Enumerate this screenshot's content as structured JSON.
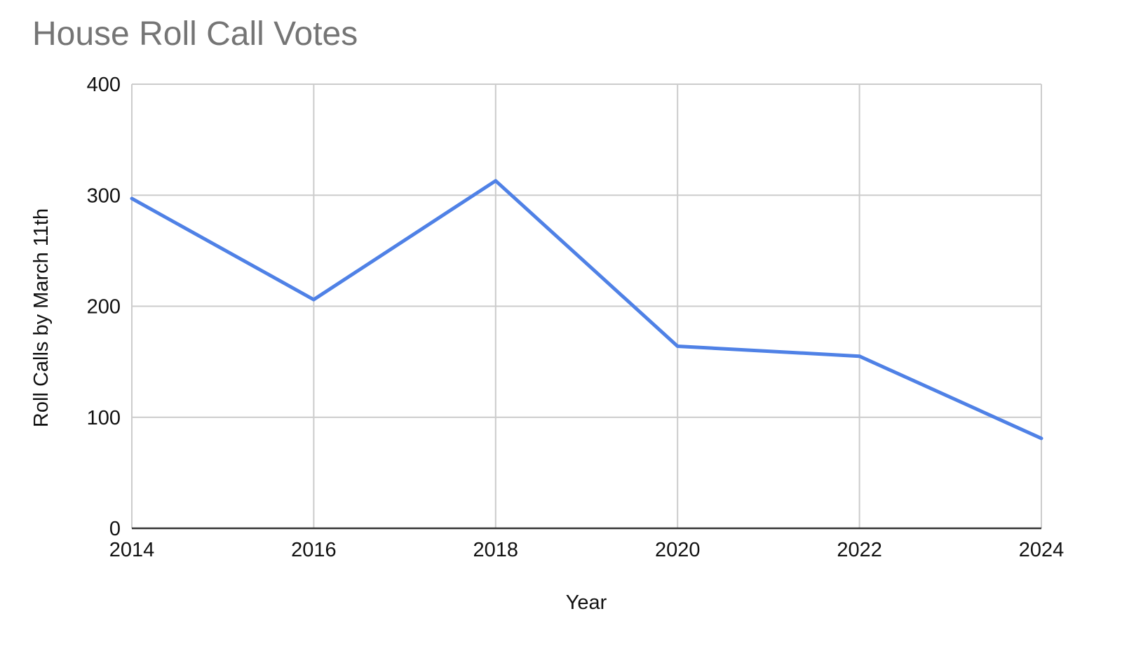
{
  "chart_data": {
    "type": "line",
    "title": "House Roll Call Votes",
    "xlabel": "Year",
    "ylabel": "Roll Calls by March 11th",
    "x": [
      2014,
      2016,
      2018,
      2020,
      2022,
      2024
    ],
    "x_tick_labels": [
      "2014",
      "2016",
      "2018",
      "2020",
      "2022",
      "2024"
    ],
    "y_ticks": [
      0,
      100,
      200,
      300,
      400
    ],
    "y_tick_labels": [
      "0",
      "100",
      "200",
      "300",
      "400"
    ],
    "ylim": [
      0,
      400
    ],
    "xlim": [
      2014,
      2024
    ],
    "grid": true,
    "legend": "none",
    "series": [
      {
        "name": "Roll Calls by March 11th",
        "color": "#4f81e6",
        "values": [
          297,
          206,
          313,
          164,
          155,
          81
        ]
      }
    ]
  }
}
